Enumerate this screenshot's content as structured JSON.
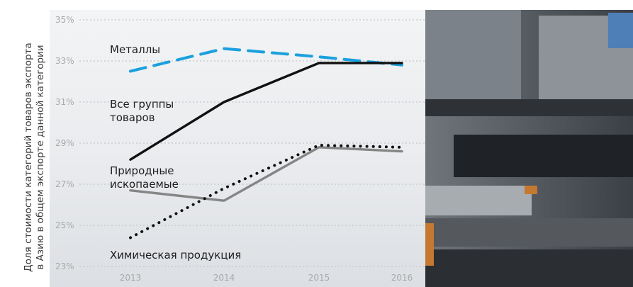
{
  "header_text": "",
  "chart_data": {
    "type": "line",
    "xlabel": "",
    "ylabel_lines": [
      "Доля стоимости категорий товаров экспорта",
      "в Азию в общем экспорте данной категории"
    ],
    "categories": [
      "2013",
      "2014",
      "2015",
      "2016"
    ],
    "ylim": [
      23,
      35
    ],
    "yticks": [
      "23%",
      "25%",
      "27%",
      "29%",
      "31%",
      "33%",
      "35%"
    ],
    "grid": true,
    "series": [
      {
        "name": "Металлы",
        "values": [
          32.5,
          33.6,
          33.2,
          32.8
        ],
        "color": "#1aa0de",
        "style": "dashed"
      },
      {
        "name": "Все группы товаров",
        "values": [
          28.2,
          31.0,
          32.9,
          32.9
        ],
        "color": "#111111",
        "style": "solid"
      },
      {
        "name": "Природные ископаемые",
        "values": [
          26.7,
          26.2,
          28.8,
          28.6
        ],
        "color": "#858585",
        "style": "solid"
      },
      {
        "name": "Химическая продукция",
        "values": [
          24.4,
          26.8,
          28.9,
          28.8
        ],
        "color": "#111111",
        "style": "dotted"
      }
    ],
    "series_label_lines": [
      [
        "Металлы"
      ],
      [
        "Все группы",
        "товаров"
      ],
      [
        "Природные",
        "ископаемые"
      ],
      [
        "Химическая продукция"
      ]
    ]
  }
}
